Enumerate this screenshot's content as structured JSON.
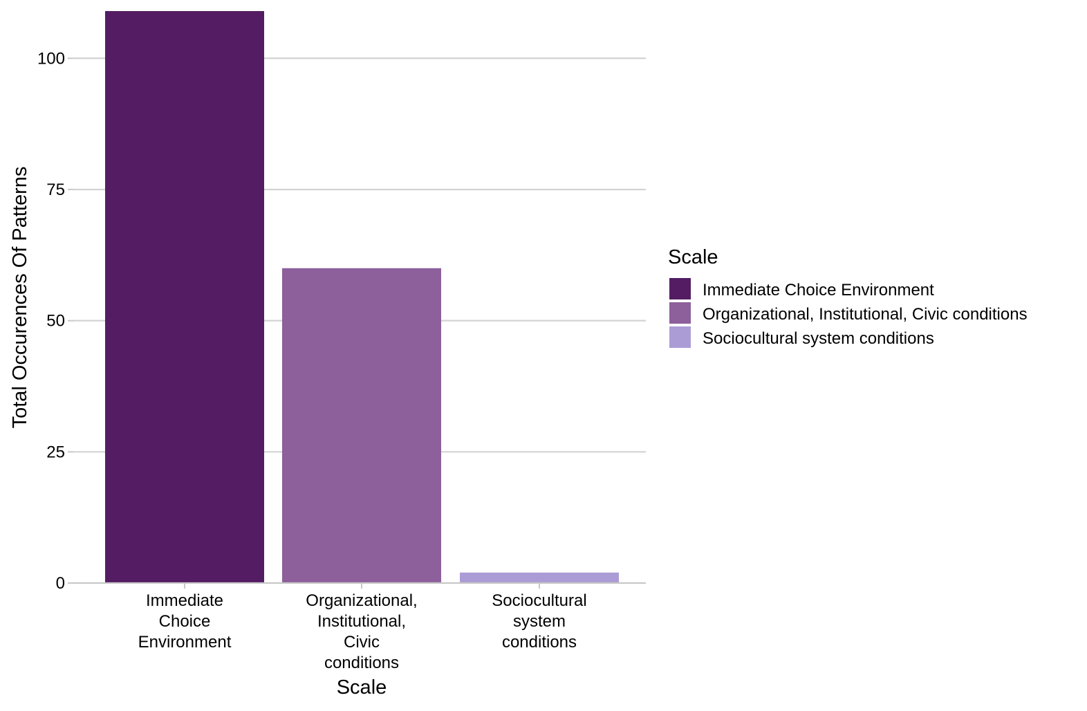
{
  "chart_data": {
    "type": "bar",
    "categories": [
      "Immediate Choice Environment",
      "Organizational, Institutional, Civic conditions",
      "Sociocultural system conditions"
    ],
    "category_tick_lines": [
      [
        "Immediate",
        "Choice",
        "Environment"
      ],
      [
        "Organizational,",
        "Institutional,",
        "Civic",
        "conditions"
      ],
      [
        "Sociocultural",
        "system",
        "conditions"
      ]
    ],
    "values": [
      109,
      60,
      2
    ],
    "colors": [
      "#541d63",
      "#8d5f9b",
      "#ab9cd6"
    ],
    "title": "",
    "xlabel": "Scale",
    "ylabel": "Total Occurences Of Patterns",
    "ylim": [
      0,
      109
    ],
    "yticks": [
      0,
      25,
      50,
      75,
      100
    ],
    "grid": "horizontal major lines",
    "legend": {
      "title": "Scale",
      "placement": "right",
      "entries": [
        "Immediate Choice Environment",
        "Organizational, Institutional, Civic conditions",
        "Sociocultural system conditions"
      ]
    }
  }
}
